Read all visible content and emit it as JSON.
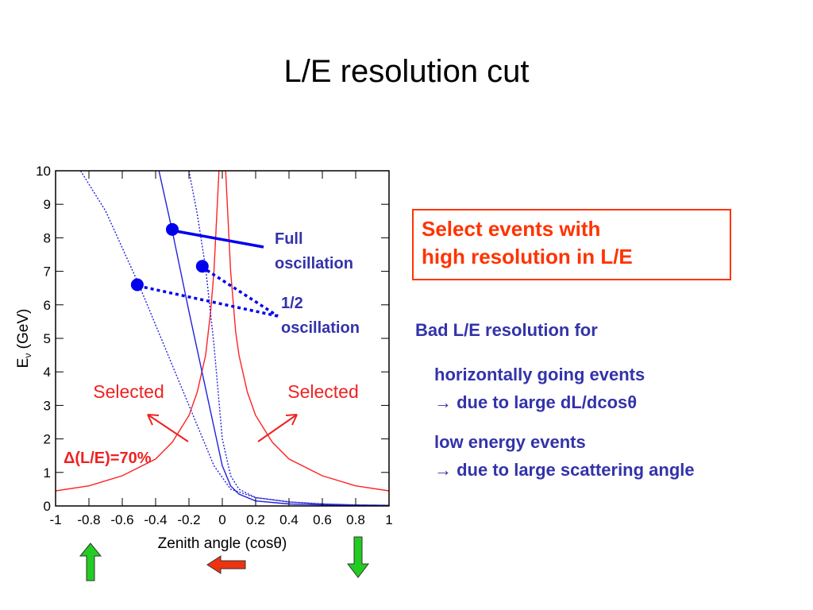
{
  "slide": {
    "title": "L/E resolution cut"
  },
  "chart_data": {
    "type": "line",
    "xlabel": "Zenith angle (cosθ)",
    "ylabel_main": "E",
    "ylabel_sub": "ν",
    "ylabel_unit": " (GeV)",
    "xlim": [
      -1,
      1
    ],
    "ylim": [
      0,
      10
    ],
    "xticks": [
      "-1",
      "-0.8",
      "-0.6",
      "-0.4",
      "-0.2",
      "0",
      "0.2",
      "0.4",
      "0.6",
      "0.8",
      "1"
    ],
    "yticks": [
      "0",
      "1",
      "2",
      "3",
      "4",
      "5",
      "6",
      "7",
      "8",
      "9",
      "10"
    ],
    "grid": false,
    "series": [
      {
        "style": "solid",
        "color": "#ff2222",
        "x": [
          -1,
          -0.8,
          -0.6,
          -0.4,
          -0.3,
          -0.2,
          -0.15,
          -0.1,
          -0.07,
          -0.05,
          -0.03,
          -0.02
        ],
        "y": [
          0.45,
          0.6,
          0.9,
          1.4,
          1.9,
          2.7,
          3.4,
          4.5,
          5.8,
          7.0,
          9.0,
          10
        ]
      },
      {
        "style": "solid",
        "color": "#ff2222",
        "x": [
          0.02,
          0.03,
          0.05,
          0.08,
          0.1,
          0.15,
          0.2,
          0.3,
          0.4,
          0.6,
          0.8,
          1
        ],
        "y": [
          10,
          9.0,
          7.0,
          5.2,
          4.5,
          3.4,
          2.7,
          1.9,
          1.4,
          0.9,
          0.6,
          0.45
        ]
      },
      {
        "style": "solid",
        "color": "#2222dd",
        "x": [
          -0.38,
          -0.3,
          -0.2,
          -0.1,
          0,
          0.05,
          0.1,
          0.2,
          0.4,
          0.6,
          0.8,
          1
        ],
        "y": [
          10,
          8.2,
          5.8,
          3.5,
          1.2,
          0.6,
          0.35,
          0.15,
          0.06,
          0.03,
          0.02,
          0.01
        ]
      },
      {
        "style": "dotted",
        "color": "#2222dd",
        "x": [
          -0.85,
          -0.7,
          -0.5,
          -0.3,
          -0.15,
          -0.05,
          0.05,
          0.2,
          0.4,
          0.6,
          0.8,
          1
        ],
        "y": [
          10,
          8.8,
          6.6,
          4.2,
          2.4,
          1.2,
          0.5,
          0.25,
          0.12,
          0.06,
          0.03,
          0.02
        ]
      },
      {
        "style": "dotted",
        "color": "#2222dd",
        "x": [
          -0.2,
          -0.15,
          -0.1,
          -0.05,
          0,
          0.05,
          0.1,
          0.2,
          0.4,
          0.6,
          0.8,
          1
        ],
        "y": [
          10,
          8.7,
          7.1,
          4.8,
          2.0,
          0.9,
          0.5,
          0.25,
          0.12,
          0.06,
          0.03,
          0.02
        ]
      }
    ],
    "markers": [
      {
        "x": -0.3,
        "y": 8.25,
        "color": "#0000ee"
      },
      {
        "x": -0.12,
        "y": 7.15,
        "color": "#0000ee"
      },
      {
        "x": -0.51,
        "y": 6.6,
        "color": "#0000ee"
      }
    ],
    "annotations": {
      "full_label": [
        "Full",
        "oscillation"
      ],
      "half_label": [
        "1/2",
        "oscillation"
      ],
      "selected_left": "Selected",
      "selected_right": "Selected",
      "resolution_delta": "Δ",
      "resolution_rest": "(L/E)=70%"
    }
  },
  "cut_box": {
    "line1": "Select events with",
    "line2": "high resolution in L/E"
  },
  "notes": {
    "heading": "Bad L/E resolution for",
    "item1_line1": "horizontally going events",
    "item1_line2": "→ due to large dL/dcosθ",
    "item2_line1": "low energy events",
    "item2_line2": "→ due to large scattering angle"
  },
  "colors": {
    "accent": "#ff3300",
    "note_text": "#3333aa",
    "up_arrow": "#22cc22",
    "left_arrow": "#ee3311"
  }
}
